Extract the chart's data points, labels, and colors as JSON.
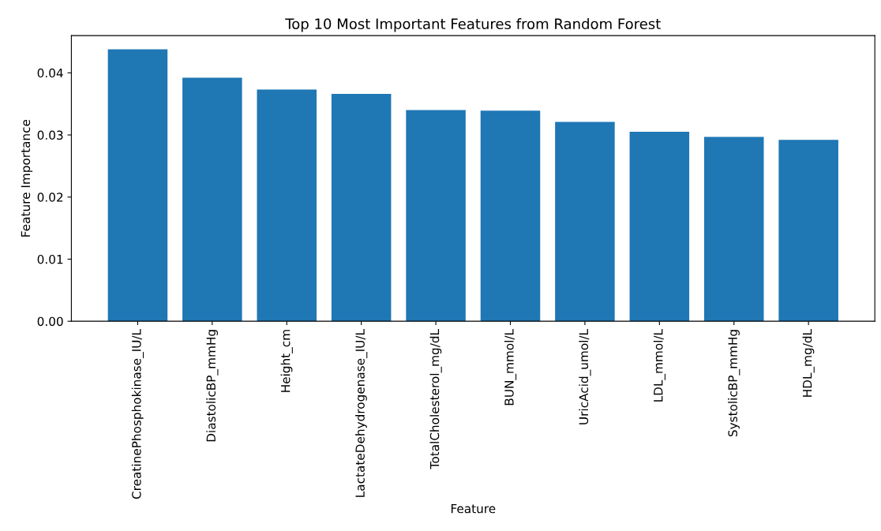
{
  "chart_data": {
    "type": "bar",
    "title": "Top 10 Most Important Features from Random Forest",
    "xlabel": "Feature",
    "ylabel": "Feature Importance",
    "categories": [
      "CreatinePhosphokinase_IU/L",
      "DiastolicBP_mmHg",
      "Height_cm",
      "LactateDehydrogenase_IU/L",
      "TotalCholesterol_mg/dL",
      "BUN_mmol/L",
      "UricAcid_umol/L",
      "LDL_mmol/L",
      "SystolicBP_mmHg",
      "HDL_mg/dL"
    ],
    "values": [
      0.0438,
      0.0392,
      0.0373,
      0.0366,
      0.034,
      0.0339,
      0.0321,
      0.0305,
      0.0297,
      0.0292
    ],
    "color": "#1f77b4",
    "ylim": [
      0,
      0.046
    ],
    "yticks": [
      {
        "value": 0,
        "label": "0.00"
      },
      {
        "value": 0.01,
        "label": "0.01"
      },
      {
        "value": 0.02,
        "label": "0.02"
      },
      {
        "value": 0.03,
        "label": "0.03"
      },
      {
        "value": 0.04,
        "label": "0.04"
      }
    ],
    "grid": false,
    "legend": false
  }
}
